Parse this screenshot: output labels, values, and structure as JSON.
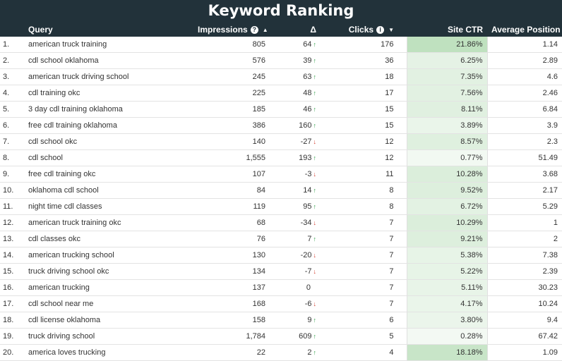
{
  "title": "Keyword Ranking",
  "columns": {
    "query": "Query",
    "impressions": "Impressions",
    "delta": "Δ",
    "clicks": "Clicks",
    "site_ctr": "Site CTR",
    "avg_position": "Average Position"
  },
  "icons": {
    "help": "question-circle-icon",
    "sort_up": "caret-up-icon",
    "sort_down": "caret-down-icon"
  },
  "colors": {
    "header_bg": "#22323a",
    "ctr_bar": "#d3ead3",
    "up_arrow": "#2e9e45",
    "down_arrow": "#d33a2c"
  },
  "rows": [
    {
      "index": "1.",
      "query": "american truck training",
      "impressions": "805",
      "delta": "64",
      "dir": "up",
      "clicks": "176",
      "ctr": "21.86%",
      "ctr_val": 21.86,
      "position": "1.14"
    },
    {
      "index": "2.",
      "query": "cdl school oklahoma",
      "impressions": "576",
      "delta": "39",
      "dir": "up",
      "clicks": "36",
      "ctr": "6.25%",
      "ctr_val": 6.25,
      "position": "2.89"
    },
    {
      "index": "3.",
      "query": "american truck driving school",
      "impressions": "245",
      "delta": "63",
      "dir": "up",
      "clicks": "18",
      "ctr": "7.35%",
      "ctr_val": 7.35,
      "position": "4.6"
    },
    {
      "index": "4.",
      "query": "cdl training okc",
      "impressions": "225",
      "delta": "48",
      "dir": "up",
      "clicks": "17",
      "ctr": "7.56%",
      "ctr_val": 7.56,
      "position": "2.46"
    },
    {
      "index": "5.",
      "query": "3 day cdl training oklahoma",
      "impressions": "185",
      "delta": "46",
      "dir": "up",
      "clicks": "15",
      "ctr": "8.11%",
      "ctr_val": 8.11,
      "position": "6.84"
    },
    {
      "index": "6.",
      "query": "free cdl training oklahoma",
      "impressions": "386",
      "delta": "160",
      "dir": "up",
      "clicks": "15",
      "ctr": "3.89%",
      "ctr_val": 3.89,
      "position": "3.9"
    },
    {
      "index": "7.",
      "query": "cdl school okc",
      "impressions": "140",
      "delta": "-27",
      "dir": "down",
      "clicks": "12",
      "ctr": "8.57%",
      "ctr_val": 8.57,
      "position": "2.3"
    },
    {
      "index": "8.",
      "query": "cdl school",
      "impressions": "1,555",
      "delta": "193",
      "dir": "up",
      "clicks": "12",
      "ctr": "0.77%",
      "ctr_val": 0.77,
      "position": "51.49"
    },
    {
      "index": "9.",
      "query": "free cdl training okc",
      "impressions": "107",
      "delta": "-3",
      "dir": "down",
      "clicks": "11",
      "ctr": "10.28%",
      "ctr_val": 10.28,
      "position": "3.68"
    },
    {
      "index": "10.",
      "query": "oklahoma cdl school",
      "impressions": "84",
      "delta": "14",
      "dir": "up",
      "clicks": "8",
      "ctr": "9.52%",
      "ctr_val": 9.52,
      "position": "2.17"
    },
    {
      "index": "11.",
      "query": "night time cdl classes",
      "impressions": "119",
      "delta": "95",
      "dir": "up",
      "clicks": "8",
      "ctr": "6.72%",
      "ctr_val": 6.72,
      "position": "5.29"
    },
    {
      "index": "12.",
      "query": "american truck training okc",
      "impressions": "68",
      "delta": "-34",
      "dir": "down",
      "clicks": "7",
      "ctr": "10.29%",
      "ctr_val": 10.29,
      "position": "1"
    },
    {
      "index": "13.",
      "query": "cdl classes okc",
      "impressions": "76",
      "delta": "7",
      "dir": "up",
      "clicks": "7",
      "ctr": "9.21%",
      "ctr_val": 9.21,
      "position": "2"
    },
    {
      "index": "14.",
      "query": "american trucking school",
      "impressions": "130",
      "delta": "-20",
      "dir": "down",
      "clicks": "7",
      "ctr": "5.38%",
      "ctr_val": 5.38,
      "position": "7.38"
    },
    {
      "index": "15.",
      "query": "truck driving school okc",
      "impressions": "134",
      "delta": "-7",
      "dir": "down",
      "clicks": "7",
      "ctr": "5.22%",
      "ctr_val": 5.22,
      "position": "2.39"
    },
    {
      "index": "16.",
      "query": "american trucking",
      "impressions": "137",
      "delta": "0",
      "dir": "none",
      "clicks": "7",
      "ctr": "5.11%",
      "ctr_val": 5.11,
      "position": "30.23"
    },
    {
      "index": "17.",
      "query": "cdl school near me",
      "impressions": "168",
      "delta": "-6",
      "dir": "down",
      "clicks": "7",
      "ctr": "4.17%",
      "ctr_val": 4.17,
      "position": "10.24"
    },
    {
      "index": "18.",
      "query": "cdl license oklahoma",
      "impressions": "158",
      "delta": "9",
      "dir": "up",
      "clicks": "6",
      "ctr": "3.80%",
      "ctr_val": 3.8,
      "position": "9.4"
    },
    {
      "index": "19.",
      "query": "truck driving school",
      "impressions": "1,784",
      "delta": "609",
      "dir": "up",
      "clicks": "5",
      "ctr": "0.28%",
      "ctr_val": 0.28,
      "position": "67.42"
    },
    {
      "index": "20.",
      "query": "america loves trucking",
      "impressions": "22",
      "delta": "2",
      "dir": "up",
      "clicks": "4",
      "ctr": "18.18%",
      "ctr_val": 18.18,
      "position": "1.09"
    }
  ]
}
